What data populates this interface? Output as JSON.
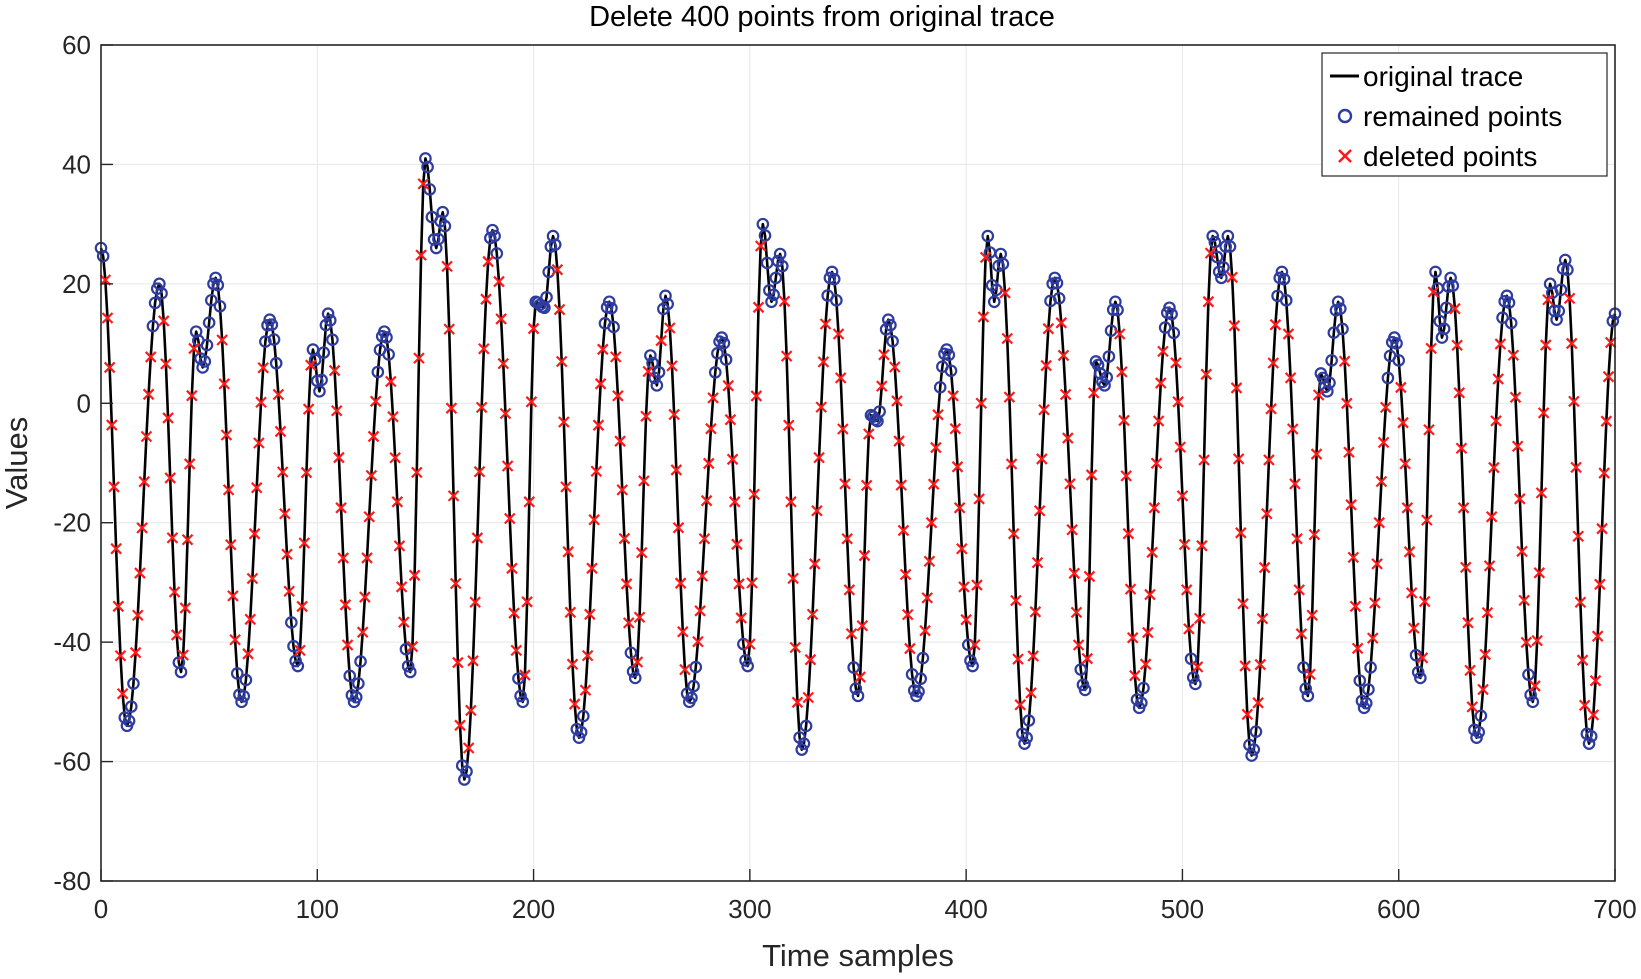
{
  "chart_data": {
    "type": "line",
    "title": "Delete 400 points from original trace",
    "xlabel": "Time samples",
    "ylabel": "Values",
    "xlim": [
      0,
      700
    ],
    "ylim": [
      -80,
      60
    ],
    "xticks": [
      0,
      100,
      200,
      300,
      400,
      500,
      600,
      700
    ],
    "yticks": [
      60,
      40,
      20,
      0,
      -20,
      -40,
      -60,
      -80
    ],
    "grid": true,
    "legend_position": "top-right",
    "length": 700,
    "colors": {
      "trace": "#000000",
      "remained": "#2e3ca0",
      "deleted": "#ff1a1a"
    },
    "peaks": [
      {
        "x": 0,
        "y": 26
      },
      {
        "x": 12,
        "y": -54
      },
      {
        "x": 27,
        "y": 20
      },
      {
        "x": 37,
        "y": -45
      },
      {
        "x": 44,
        "y": 12
      },
      {
        "x": 47,
        "y": 6
      },
      {
        "x": 53,
        "y": 21
      },
      {
        "x": 65,
        "y": -50
      },
      {
        "x": 78,
        "y": 14
      },
      {
        "x": 91,
        "y": -44
      },
      {
        "x": 98,
        "y": 9
      },
      {
        "x": 101,
        "y": 2
      },
      {
        "x": 105,
        "y": 15
      },
      {
        "x": 117,
        "y": -50
      },
      {
        "x": 131,
        "y": 12
      },
      {
        "x": 143,
        "y": -45
      },
      {
        "x": 150,
        "y": 41
      },
      {
        "x": 155,
        "y": 26
      },
      {
        "x": 158,
        "y": 32
      },
      {
        "x": 168,
        "y": -63
      },
      {
        "x": 181,
        "y": 29
      },
      {
        "x": 195,
        "y": -50
      },
      {
        "x": 201,
        "y": 17
      },
      {
        "x": 205,
        "y": 16
      },
      {
        "x": 209,
        "y": 28
      },
      {
        "x": 221,
        "y": -56
      },
      {
        "x": 235,
        "y": 17
      },
      {
        "x": 247,
        "y": -46
      },
      {
        "x": 254,
        "y": 8
      },
      {
        "x": 257,
        "y": 3
      },
      {
        "x": 261,
        "y": 18
      },
      {
        "x": 272,
        "y": -50
      },
      {
        "x": 287,
        "y": 11
      },
      {
        "x": 299,
        "y": -44
      },
      {
        "x": 306,
        "y": 30
      },
      {
        "x": 310,
        "y": 17
      },
      {
        "x": 314,
        "y": 25
      },
      {
        "x": 324,
        "y": -58
      },
      {
        "x": 338,
        "y": 22
      },
      {
        "x": 350,
        "y": -49
      },
      {
        "x": 356,
        "y": -2
      },
      {
        "x": 359,
        "y": -3
      },
      {
        "x": 364,
        "y": 14
      },
      {
        "x": 377,
        "y": -49
      },
      {
        "x": 391,
        "y": 9
      },
      {
        "x": 403,
        "y": -44
      },
      {
        "x": 410,
        "y": 28
      },
      {
        "x": 413,
        "y": 17
      },
      {
        "x": 416,
        "y": 25
      },
      {
        "x": 427,
        "y": -57
      },
      {
        "x": 441,
        "y": 21
      },
      {
        "x": 455,
        "y": -48
      },
      {
        "x": 460,
        "y": 7
      },
      {
        "x": 464,
        "y": 3
      },
      {
        "x": 469,
        "y": 17
      },
      {
        "x": 480,
        "y": -51
      },
      {
        "x": 494,
        "y": 16
      },
      {
        "x": 506,
        "y": -47
      },
      {
        "x": 514,
        "y": 28
      },
      {
        "x": 518,
        "y": 21
      },
      {
        "x": 521,
        "y": 28
      },
      {
        "x": 532,
        "y": -59
      },
      {
        "x": 546,
        "y": 22
      },
      {
        "x": 558,
        "y": -49
      },
      {
        "x": 564,
        "y": 5
      },
      {
        "x": 567,
        "y": 2
      },
      {
        "x": 572,
        "y": 17
      },
      {
        "x": 584,
        "y": -51
      },
      {
        "x": 598,
        "y": 11
      },
      {
        "x": 610,
        "y": -46
      },
      {
        "x": 617,
        "y": 22
      },
      {
        "x": 620,
        "y": 11
      },
      {
        "x": 624,
        "y": 21
      },
      {
        "x": 636,
        "y": -56
      },
      {
        "x": 650,
        "y": 18
      },
      {
        "x": 662,
        "y": -50
      },
      {
        "x": 670,
        "y": 20
      },
      {
        "x": 673,
        "y": 14
      },
      {
        "x": 677,
        "y": 24
      },
      {
        "x": 688,
        "y": -57
      },
      {
        "x": 700,
        "y": 15
      }
    ],
    "series": [
      {
        "name": "original trace",
        "style": "line"
      },
      {
        "name": "remained points",
        "style": "circle-marker"
      },
      {
        "name": "deleted points",
        "style": "x-marker",
        "count": 400
      }
    ]
  }
}
